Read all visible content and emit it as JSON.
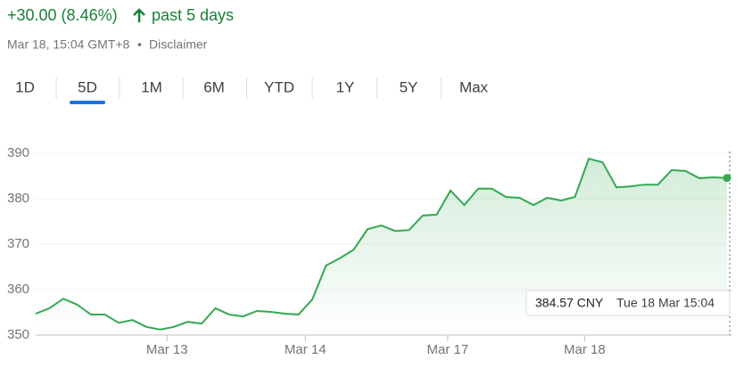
{
  "header": {
    "change": "+30.00 (8.46%)",
    "period": "past 5 days",
    "timestamp": "Mar 18, 15:04 GMT+8",
    "disclaimer": "Disclaimer"
  },
  "tabs": [
    {
      "label": "1D",
      "selected": false
    },
    {
      "label": "5D",
      "selected": true
    },
    {
      "label": "1M",
      "selected": false
    },
    {
      "label": "6M",
      "selected": false
    },
    {
      "label": "YTD",
      "selected": false
    },
    {
      "label": "1Y",
      "selected": false
    },
    {
      "label": "5Y",
      "selected": false
    },
    {
      "label": "Max",
      "selected": false
    }
  ],
  "tooltip": {
    "price": "384.57 CNY",
    "time": "Tue 18 Mar 15:04"
  },
  "chart_data": {
    "type": "line",
    "xlim": [
      0,
      50
    ],
    "xticks": [
      {
        "value": 9.5,
        "label": "Mar 13"
      },
      {
        "value": 19.5,
        "label": "Mar 14"
      },
      {
        "value": 29.8,
        "label": "Mar 17"
      },
      {
        "value": 39.7,
        "label": "Mar 18"
      }
    ],
    "ylim": [
      350,
      392
    ],
    "yticks": [
      350,
      360,
      370,
      380,
      390
    ],
    "grid": true,
    "series": [
      {
        "color": "#34a853",
        "values": [
          354.7,
          355.9,
          358.0,
          356.7,
          354.5,
          354.5,
          352.7,
          353.3,
          351.8,
          351.2,
          351.8,
          352.9,
          352.5,
          355.9,
          354.5,
          354.1,
          355.3,
          355.1,
          354.7,
          354.5,
          357.8,
          365.3,
          366.9,
          368.8,
          373.3,
          374.1,
          372.9,
          373.1,
          376.3,
          376.5,
          381.8,
          378.6,
          382.2,
          382.2,
          380.4,
          380.2,
          378.6,
          380.2,
          379.6,
          380.4,
          388.8,
          388.0,
          382.5,
          382.7,
          383.1,
          383.1,
          386.3,
          386.1,
          384.5,
          384.7,
          384.57
        ]
      }
    ]
  }
}
